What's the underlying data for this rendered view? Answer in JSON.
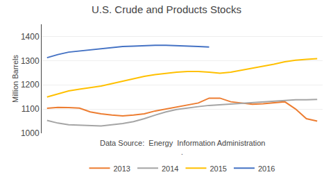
{
  "chart_data": {
    "type": "line",
    "title": "U.S. Crude and Products Stocks",
    "ylabel": "Million Barrels",
    "annotations": [
      "Data Source:  Energy  Information Administration",
      "."
    ],
    "categories": [
      null,
      null,
      null,
      null,
      null,
      null,
      null,
      null,
      null,
      null,
      null,
      null,
      null,
      null,
      null,
      null,
      null,
      null,
      null,
      null,
      null,
      null,
      null,
      null,
      null,
      null
    ],
    "series": [
      {
        "name": "2013",
        "color": "#ED7D31",
        "values": [
          1103,
          1107,
          1106,
          1104,
          1088,
          1080,
          1075,
          1072,
          1075,
          1080,
          1092,
          1100,
          1108,
          1118,
          1125,
          1145,
          1145,
          1130,
          1125,
          1120,
          1122,
          1125,
          1130,
          1100,
          1060,
          1050
        ]
      },
      {
        "name": "2014",
        "color": "#A5A5A5",
        "values": [
          1053,
          1042,
          1035,
          1033,
          1032,
          1030,
          1035,
          1040,
          1048,
          1060,
          1075,
          1088,
          1098,
          1105,
          1110,
          1115,
          1118,
          1120,
          1122,
          1125,
          1128,
          1132,
          1135,
          1138,
          1138,
          1140
        ]
      },
      {
        "name": "2015",
        "color": "#FFC000",
        "values": [
          1150,
          1163,
          1175,
          1182,
          1188,
          1195,
          1205,
          1215,
          1225,
          1235,
          1242,
          1248,
          1252,
          1255,
          1255,
          1252,
          1248,
          1252,
          1260,
          1268,
          1275,
          1285,
          1295,
          1302,
          1305,
          1308
        ]
      },
      {
        "name": "2016",
        "color": "#4472C4",
        "values": [
          1312,
          1325,
          1335,
          1340,
          1345,
          1350,
          1355,
          1358,
          1360,
          1362,
          1363,
          1363,
          1362,
          1360,
          1358,
          1356,
          null,
          null,
          null,
          null,
          null,
          null,
          null,
          null,
          null,
          null
        ]
      }
    ],
    "ylim": [
      1000,
      1450
    ],
    "yticks": [
      1000,
      1100,
      1200,
      1300,
      1400
    ],
    "grid": true,
    "legend": "bottom",
    "tick_labels": "y"
  }
}
